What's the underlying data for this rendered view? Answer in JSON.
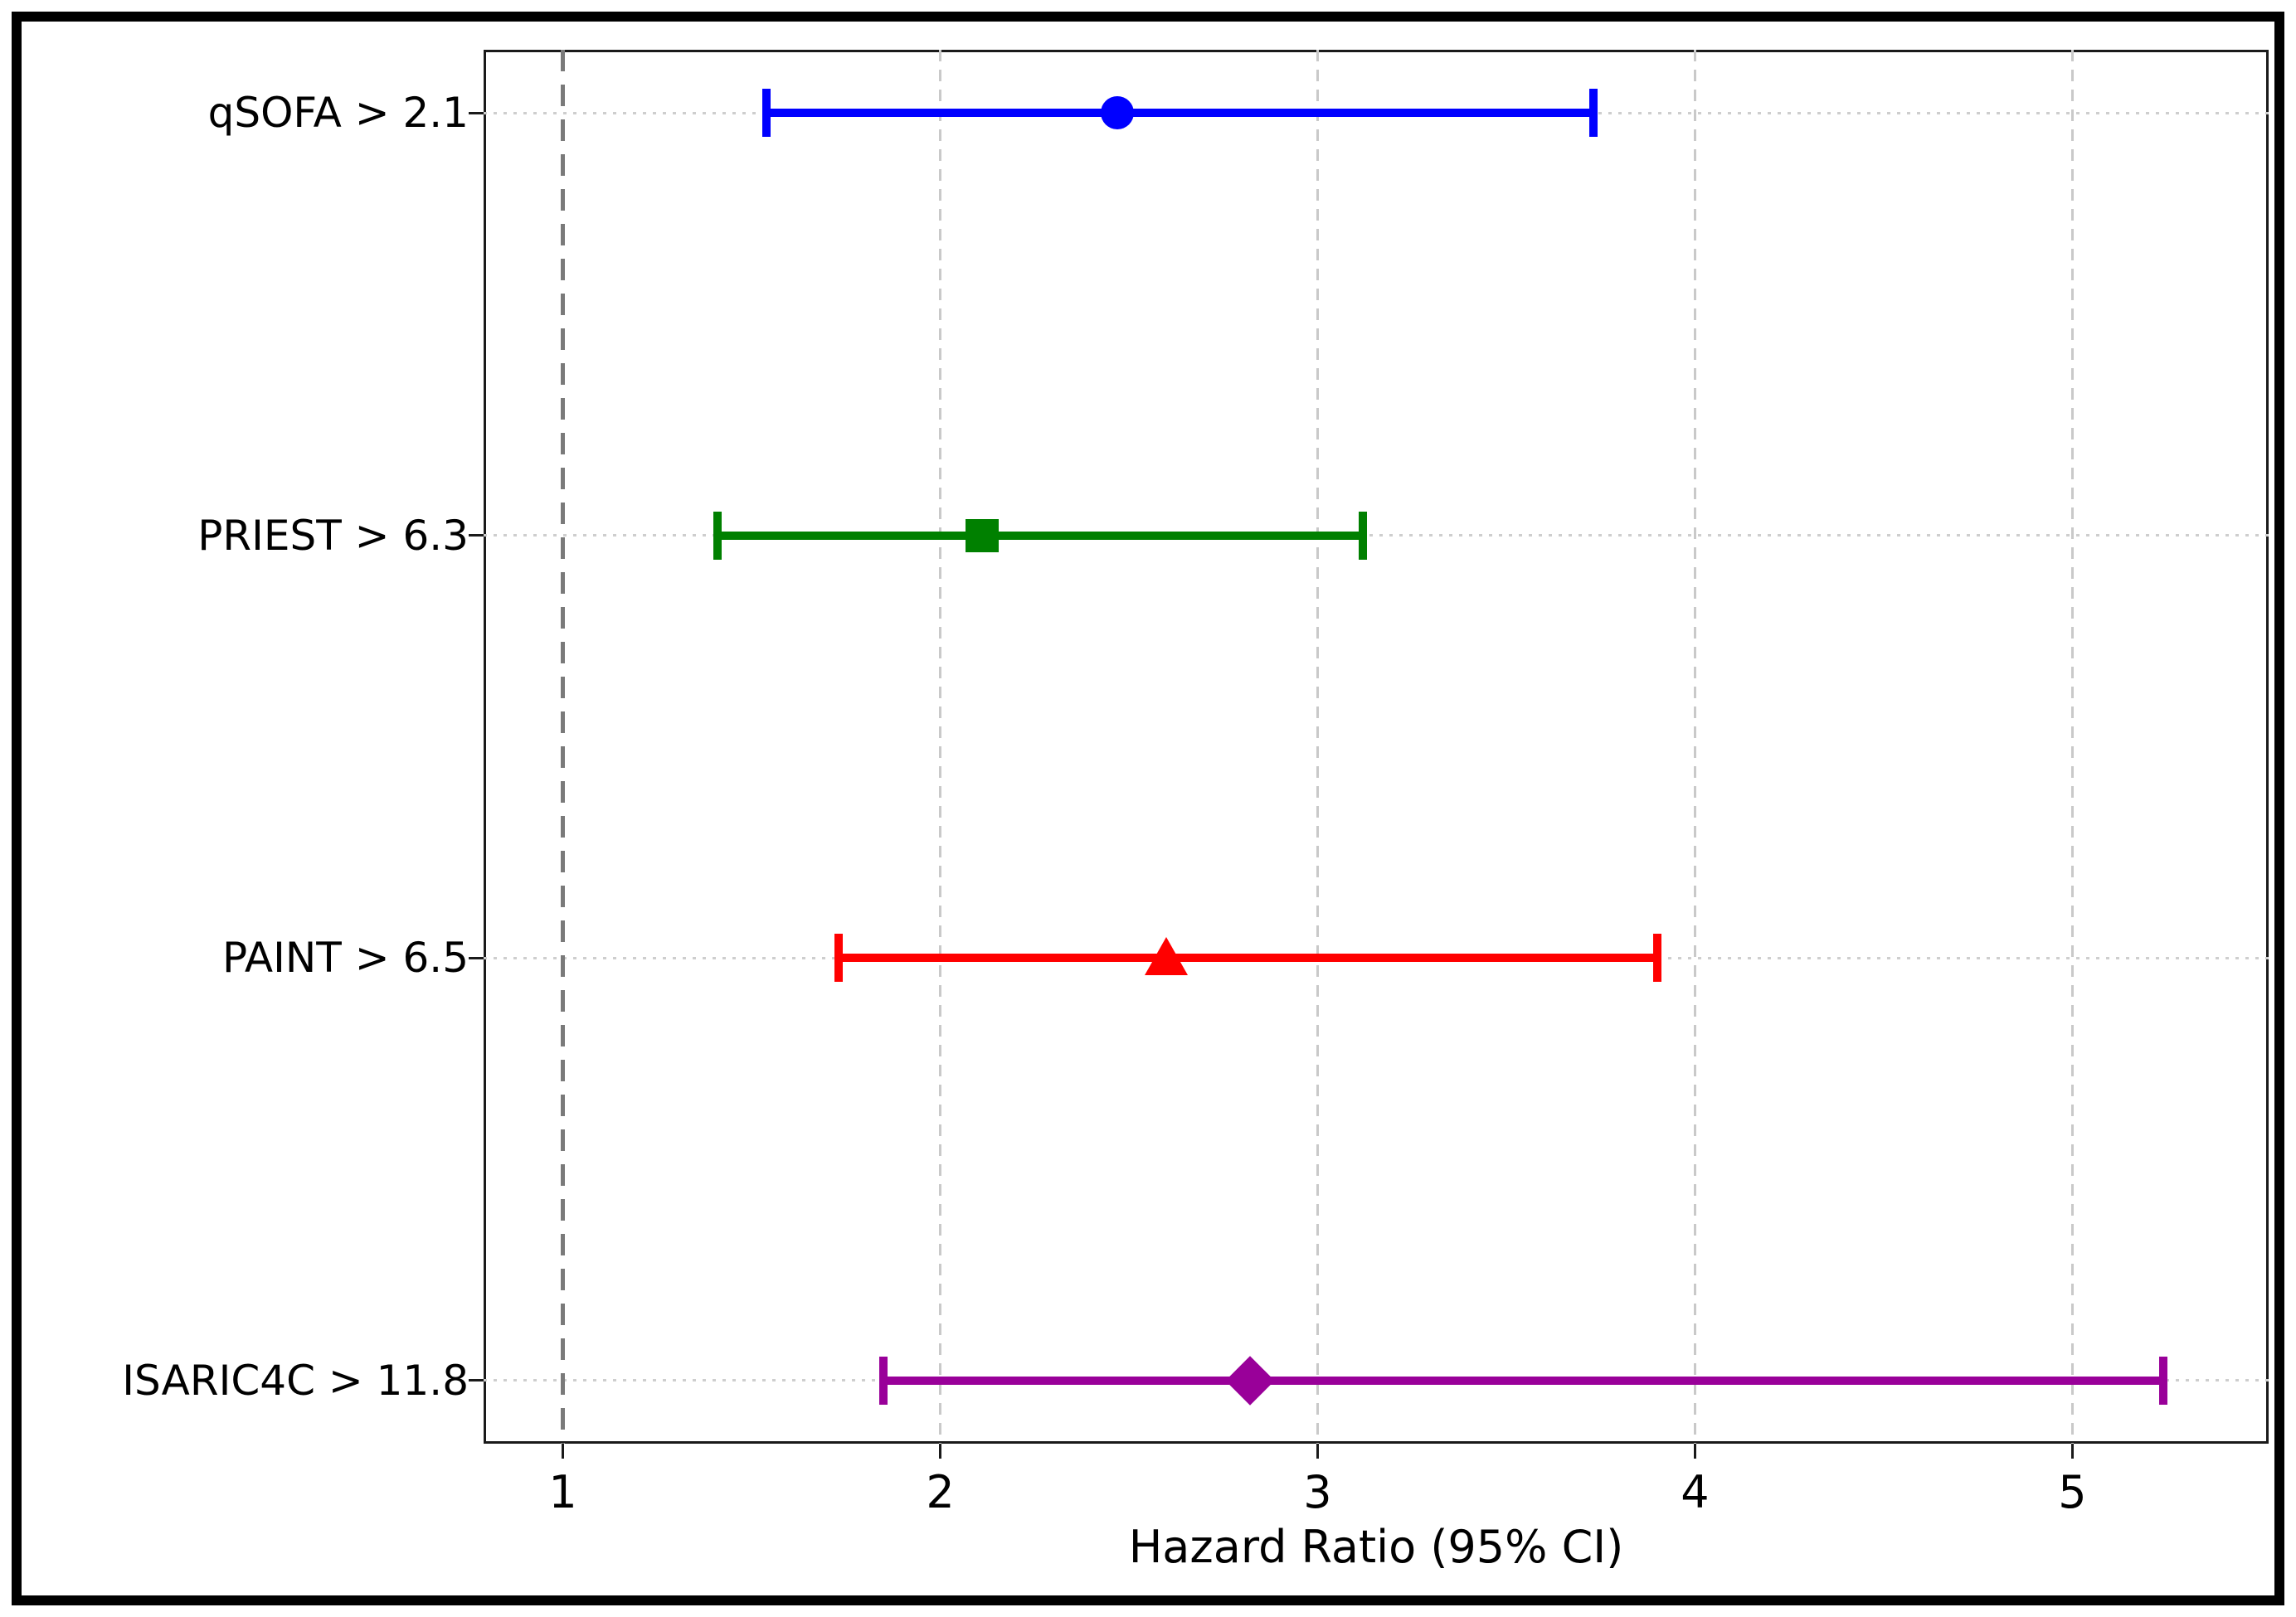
{
  "figure": {
    "background_color": "#ffffff",
    "border_color": "#000000"
  },
  "chart_data": {
    "type": "scatter",
    "subtype": "forest-plot-hazard-ratios",
    "title": "",
    "xlabel": "Hazard Ratio (95% CI)",
    "ylabel": "",
    "xlim": [
      0.79,
      5.52
    ],
    "ylim": [
      0.85,
      4.15
    ],
    "x_ticks": [
      1,
      2,
      3,
      4,
      5
    ],
    "grid": true,
    "grid_color": "#c9c9c9",
    "reference_line": {
      "x": 1,
      "style": "dashed",
      "color": "#7a7a7a"
    },
    "series": [
      {
        "label": "qSOFA > 2.1",
        "y": 4,
        "hr": 2.47,
        "ci_low": 1.54,
        "ci_high": 3.73,
        "color": "#0000ff",
        "marker": "circle"
      },
      {
        "label": "PRIEST > 6.3",
        "y": 3,
        "hr": 2.11,
        "ci_low": 1.41,
        "ci_high": 3.12,
        "color": "#008000",
        "marker": "square"
      },
      {
        "label": "PAINT > 6.5",
        "y": 2,
        "hr": 2.6,
        "ci_low": 1.73,
        "ci_high": 3.9,
        "color": "#ff0000",
        "marker": "triangle"
      },
      {
        "label": "ISARIC4C > 11.8",
        "y": 1,
        "hr": 2.82,
        "ci_low": 1.85,
        "ci_high": 5.24,
        "color": "#990099",
        "marker": "diamond"
      }
    ]
  }
}
